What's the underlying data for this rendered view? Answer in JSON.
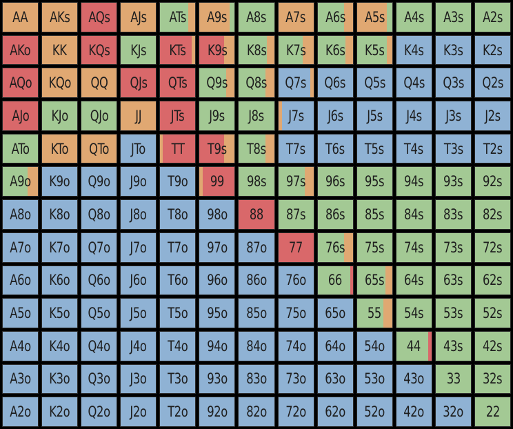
{
  "colors": {
    "orange": "#e0a872",
    "red": "#d9686a",
    "green": "#a3c994",
    "blue": "#8fb2d4"
  },
  "chart_data": {
    "type": "heatmap",
    "rows": 13,
    "cols": 13,
    "cells": [
      [
        "AA",
        "AKs",
        "AQs",
        "AJs",
        "ATs",
        "A9s",
        "A8s",
        "A7s",
        "A6s",
        "A5s",
        "A4s",
        "A3s",
        "A2s"
      ],
      [
        "AKo",
        "KK",
        "KQs",
        "KJs",
        "KTs",
        "K9s",
        "K8s",
        "K7s",
        "K6s",
        "K5s",
        "K4s",
        "K3s",
        "K2s"
      ],
      [
        "AQo",
        "KQo",
        "QQ",
        "QJs",
        "QTs",
        "Q9s",
        "Q8s",
        "Q7s",
        "Q6s",
        "Q5s",
        "Q4s",
        "Q3s",
        "Q2s"
      ],
      [
        "AJo",
        "KJo",
        "QJo",
        "JJ",
        "JTs",
        "J9s",
        "J8s",
        "J7s",
        "J6s",
        "J5s",
        "J4s",
        "J3s",
        "J2s"
      ],
      [
        "ATo",
        "KTo",
        "QTo",
        "JTo",
        "TT",
        "T9s",
        "T8s",
        "T7s",
        "T6s",
        "T5s",
        "T4s",
        "T3s",
        "T2s"
      ],
      [
        "A9o",
        "K9o",
        "Q9o",
        "J9o",
        "T9o",
        "99",
        "98s",
        "97s",
        "96s",
        "95s",
        "94s",
        "93s",
        "92s"
      ],
      [
        "A8o",
        "K8o",
        "Q8o",
        "J8o",
        "T8o",
        "98o",
        "88",
        "87s",
        "86s",
        "85s",
        "84s",
        "83s",
        "82s"
      ],
      [
        "A7o",
        "K7o",
        "Q7o",
        "J7o",
        "T7o",
        "97o",
        "87o",
        "77",
        "76s",
        "75s",
        "74s",
        "73s",
        "72s"
      ],
      [
        "A6o",
        "K6o",
        "Q6o",
        "J6o",
        "T6o",
        "96o",
        "86o",
        "76o",
        "66",
        "65s",
        "64s",
        "63s",
        "62s"
      ],
      [
        "A5o",
        "K5o",
        "Q5o",
        "J5o",
        "T5o",
        "95o",
        "85o",
        "75o",
        "65o",
        "55",
        "54s",
        "53s",
        "52s"
      ],
      [
        "A4o",
        "K4o",
        "Q4o",
        "J4o",
        "T4o",
        "94o",
        "84o",
        "74o",
        "64o",
        "54o",
        "44",
        "43s",
        "42s"
      ],
      [
        "A3o",
        "K3o",
        "Q3o",
        "J3o",
        "T3o",
        "93o",
        "83o",
        "73o",
        "63o",
        "53o",
        "43o",
        "33",
        "32s"
      ],
      [
        "A2o",
        "K2o",
        "Q2o",
        "J2o",
        "T2o",
        "92o",
        "82o",
        "72o",
        "62o",
        "52o",
        "42o",
        "32o",
        "22"
      ]
    ],
    "fills": [
      [
        "o",
        "o",
        "r",
        "o",
        "g",
        "o",
        "g",
        "o",
        "g",
        "o",
        "g",
        "g",
        "g"
      ],
      [
        "r",
        "o",
        "r",
        "g",
        "r",
        "r",
        "g",
        "g",
        "g",
        "g",
        "b",
        "b",
        "b"
      ],
      [
        "r",
        "o",
        "o",
        "r",
        "r",
        "g",
        "g",
        "b",
        "b",
        "b",
        "b",
        "b",
        "b"
      ],
      [
        "r",
        "g",
        "g",
        "o",
        "r",
        "g",
        "g",
        "b",
        "b",
        "b",
        "b",
        "b",
        "b"
      ],
      [
        "g",
        "o",
        "o",
        "b",
        "r",
        "r",
        "g",
        "b",
        "b",
        "b",
        "b",
        "b",
        "b"
      ],
      [
        "g",
        "b",
        "b",
        "b",
        "b",
        "r",
        "g",
        "g",
        "g",
        "g",
        "g",
        "g",
        "g"
      ],
      [
        "b",
        "b",
        "b",
        "b",
        "b",
        "b",
        "r",
        "g",
        "g",
        "g",
        "g",
        "g",
        "g"
      ],
      [
        "b",
        "b",
        "b",
        "b",
        "b",
        "b",
        "b",
        "r",
        "g",
        "g",
        "g",
        "g",
        "g"
      ],
      [
        "b",
        "b",
        "b",
        "b",
        "b",
        "b",
        "b",
        "b",
        "g",
        "g",
        "g",
        "g",
        "g"
      ],
      [
        "b",
        "b",
        "b",
        "b",
        "b",
        "b",
        "b",
        "b",
        "b",
        "g",
        "g",
        "g",
        "g"
      ],
      [
        "b",
        "b",
        "b",
        "b",
        "b",
        "b",
        "b",
        "b",
        "b",
        "b",
        "g",
        "g",
        "g"
      ],
      [
        "b",
        "b",
        "b",
        "b",
        "b",
        "b",
        "b",
        "b",
        "b",
        "b",
        "b",
        "g",
        "g"
      ],
      [
        "b",
        "b",
        "b",
        "b",
        "b",
        "b",
        "b",
        "b",
        "b",
        "b",
        "b",
        "b",
        "g"
      ]
    ],
    "mixes": [
      {
        "r": 0,
        "c": 4,
        "segments": [
          [
            "g",
            0.8
          ],
          [
            "o",
            0.2
          ]
        ]
      },
      {
        "r": 0,
        "c": 5,
        "segments": [
          [
            "o",
            0.85
          ],
          [
            "g",
            0.15
          ]
        ]
      },
      {
        "r": 0,
        "c": 8,
        "segments": [
          [
            "g",
            0.75
          ],
          [
            "o",
            0.25
          ]
        ]
      },
      {
        "r": 0,
        "c": 9,
        "segments": [
          [
            "o",
            0.85
          ],
          [
            "g",
            0.15
          ]
        ]
      },
      {
        "r": 1,
        "c": 4,
        "segments": [
          [
            "r",
            0.9
          ],
          [
            "o",
            0.1
          ]
        ]
      },
      {
        "r": 1,
        "c": 5,
        "segments": [
          [
            "r",
            0.7
          ],
          [
            "o",
            0.3
          ]
        ]
      },
      {
        "r": 1,
        "c": 6,
        "segments": [
          [
            "g",
            0.8
          ],
          [
            "o",
            0.2
          ]
        ]
      },
      {
        "r": 1,
        "c": 7,
        "segments": [
          [
            "g",
            0.7
          ],
          [
            "o",
            0.3
          ]
        ]
      },
      {
        "r": 1,
        "c": 8,
        "segments": [
          [
            "g",
            0.8
          ],
          [
            "o",
            0.2
          ]
        ]
      },
      {
        "r": 1,
        "c": 9,
        "segments": [
          [
            "g",
            0.85
          ],
          [
            "o",
            0.15
          ]
        ]
      },
      {
        "r": 2,
        "c": 5,
        "segments": [
          [
            "g",
            0.75
          ],
          [
            "o",
            0.25
          ]
        ]
      },
      {
        "r": 2,
        "c": 6,
        "segments": [
          [
            "g",
            0.75
          ],
          [
            "o",
            0.25
          ]
        ]
      },
      {
        "r": 2,
        "c": 7,
        "segments": [
          [
            "b",
            0.9
          ],
          [
            "o",
            0.1
          ]
        ]
      },
      {
        "r": 3,
        "c": 7,
        "segments": [
          [
            "o",
            0.1
          ],
          [
            "b",
            0.9
          ]
        ]
      },
      {
        "r": 4,
        "c": 4,
        "segments": [
          [
            "o",
            0.08
          ],
          [
            "r",
            0.92
          ]
        ]
      },
      {
        "r": 4,
        "c": 5,
        "segments": [
          [
            "r",
            0.7
          ],
          [
            "o",
            0.3
          ]
        ]
      },
      {
        "r": 4,
        "c": 6,
        "segments": [
          [
            "g",
            0.75
          ],
          [
            "o",
            0.25
          ]
        ]
      },
      {
        "r": 5,
        "c": 0,
        "segments": [
          [
            "g",
            0.7
          ],
          [
            "o",
            0.3
          ]
        ]
      },
      {
        "r": 5,
        "c": 5,
        "segments": [
          [
            "o",
            0.1
          ],
          [
            "r",
            0.9
          ]
        ]
      },
      {
        "r": 5,
        "c": 7,
        "segments": [
          [
            "g",
            0.75
          ],
          [
            "o",
            0.25
          ]
        ]
      },
      {
        "r": 7,
        "c": 8,
        "segments": [
          [
            "g",
            0.75
          ],
          [
            "o",
            0.25
          ]
        ]
      },
      {
        "r": 8,
        "c": 8,
        "segments": [
          [
            "g",
            0.92
          ],
          [
            "r",
            0.08
          ]
        ]
      },
      {
        "r": 8,
        "c": 9,
        "segments": [
          [
            "g",
            0.8
          ],
          [
            "o",
            0.2
          ]
        ]
      },
      {
        "r": 9,
        "c": 9,
        "segments": [
          [
            "g",
            0.75
          ],
          [
            "o",
            0.25
          ]
        ]
      },
      {
        "r": 10,
        "c": 10,
        "segments": [
          [
            "g",
            0.9
          ],
          [
            "r",
            0.1
          ]
        ]
      }
    ]
  }
}
